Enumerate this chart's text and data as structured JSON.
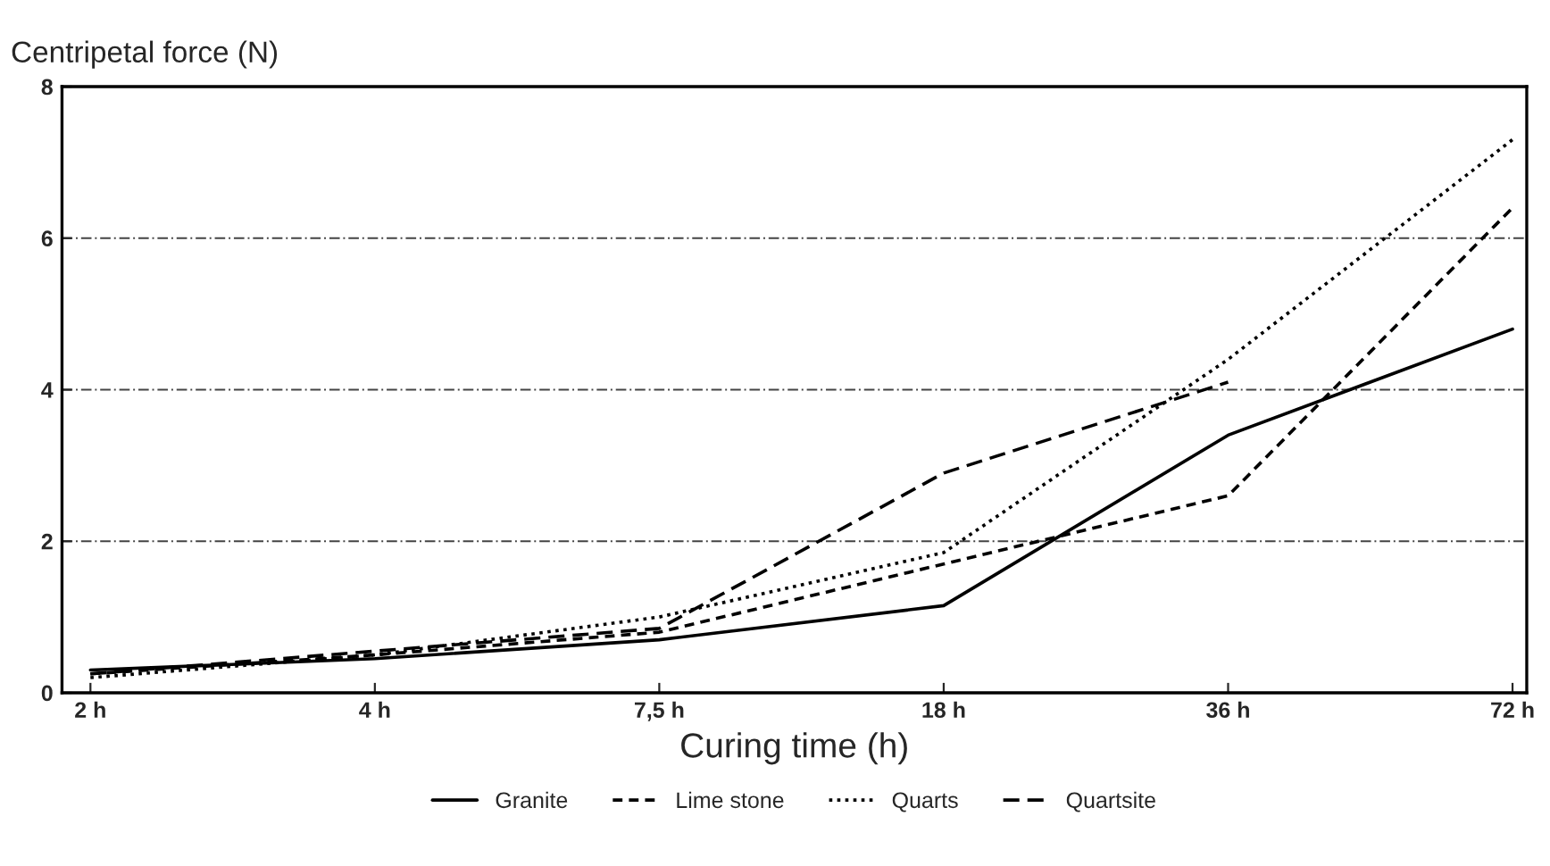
{
  "chart_data": {
    "type": "line",
    "ylabel": "Centripetal force (N)",
    "xlabel": "Curing time (h)",
    "categories": [
      "2 h",
      "4 h",
      "7,5 h",
      "18 h",
      "36 h",
      "72 h"
    ],
    "series": [
      {
        "name": "Granite",
        "color": "#000000",
        "line_style": "solid",
        "values": [
          0.3,
          0.45,
          0.7,
          1.15,
          3.4,
          4.8
        ]
      },
      {
        "name": "Lime stone",
        "color": "#000000",
        "line_style": "dashed",
        "values": [
          0.25,
          0.5,
          0.8,
          1.7,
          2.6,
          6.4
        ]
      },
      {
        "name": "Quarts",
        "color": "#000000",
        "line_style": "dotted",
        "values": [
          0.2,
          0.5,
          1.0,
          1.85,
          4.4,
          7.3
        ]
      },
      {
        "name": "Quartsite",
        "color": "#000000",
        "line_style": "dashed",
        "values": [
          0.25,
          0.55,
          0.85,
          2.9,
          4.1,
          null
        ]
      }
    ],
    "ylim": [
      0,
      8
    ],
    "yticks": [
      0,
      2,
      4,
      6,
      8
    ],
    "grid": "y",
    "legend": "bottom",
    "marker": "none"
  }
}
